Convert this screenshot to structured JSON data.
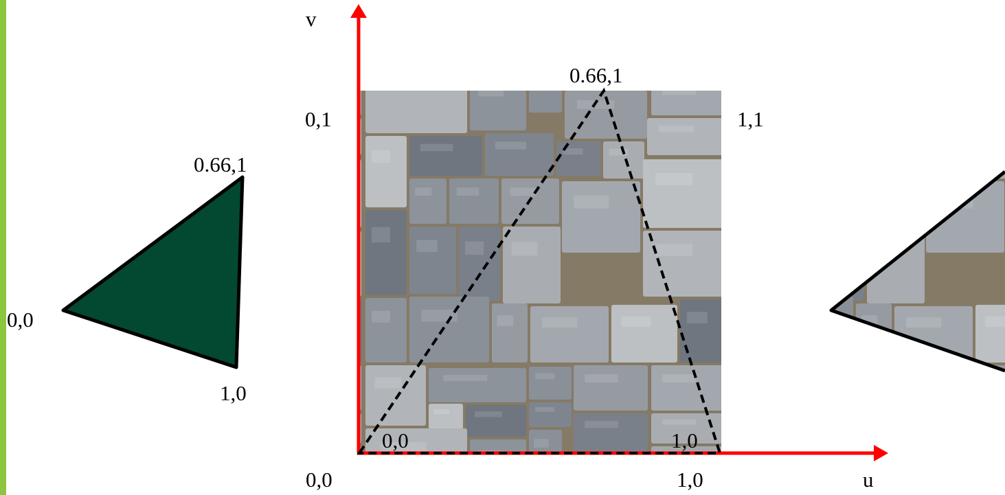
{
  "colors": {
    "accent_bar": "#8cc63f",
    "axis": "#ff0000",
    "triangle_fill": "#034830",
    "mortar": "#857a66",
    "stone_base": "#9a9fa6"
  },
  "axes": {
    "u_label": "u",
    "v_label": "v"
  },
  "texture": {
    "corner_top_left": "0,1",
    "corner_top_right": "1,1",
    "corner_bottom_left": "0,0",
    "corner_bottom_right": "1,0",
    "apex_label": "0.66,1",
    "inner_bottom_left": "0,0",
    "inner_bottom_right": "1,0"
  },
  "left_triangle": {
    "apex_label": "0.66,1",
    "left_label": "0,0",
    "bottom_label": "1,0"
  },
  "mapped_triangle": {
    "texture": "stone-wall"
  }
}
